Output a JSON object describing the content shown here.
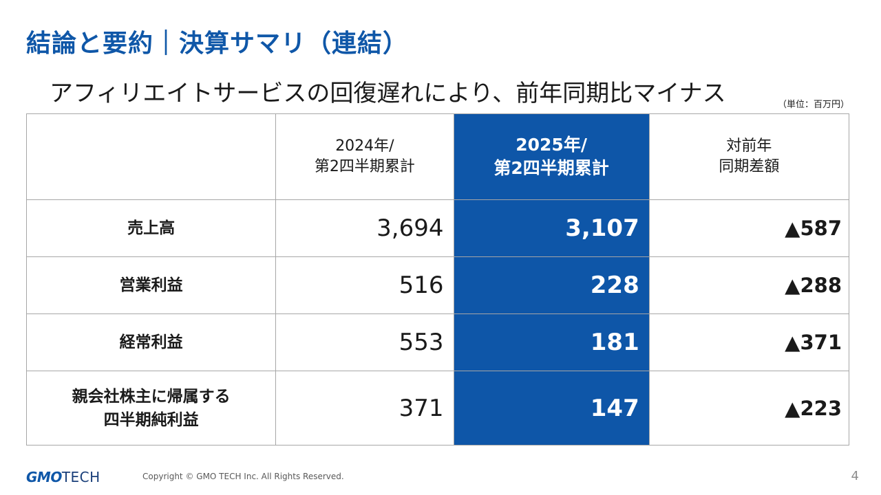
{
  "slide": {
    "title": "結論と要約｜決算サマリ（連結）",
    "subtitle": "アフィリエイトサービスの回復遅れにより、前年同期比マイナス",
    "unit": "（単位：百万円）"
  },
  "table": {
    "headers": {
      "prev": [
        "2024年/",
        "第2四半期累計"
      ],
      "curr": [
        "2025年/",
        "第2四半期累計"
      ],
      "diff": [
        "対前年",
        "同期差額"
      ]
    },
    "rows": [
      {
        "label": [
          "売上高"
        ],
        "prev": "3,694",
        "curr": "3,107",
        "diff": "▲587"
      },
      {
        "label": [
          "営業利益"
        ],
        "prev": "516",
        "curr": "228",
        "diff": "▲288"
      },
      {
        "label": [
          "経常利益"
        ],
        "prev": "553",
        "curr": "181",
        "diff": "▲371"
      },
      {
        "label": [
          "親会社株主に帰属する",
          "四半期純利益"
        ],
        "prev": "371",
        "curr": "147",
        "diff": "▲223"
      }
    ]
  },
  "footer": {
    "logo_gmo": "GMO",
    "logo_tech": "TECH",
    "copyright": "Copyright © GMO TECH Inc. All Rights Reserved.",
    "page_number": "4"
  },
  "colors": {
    "accent": "#0e56a8",
    "title": "#0f57a8"
  }
}
